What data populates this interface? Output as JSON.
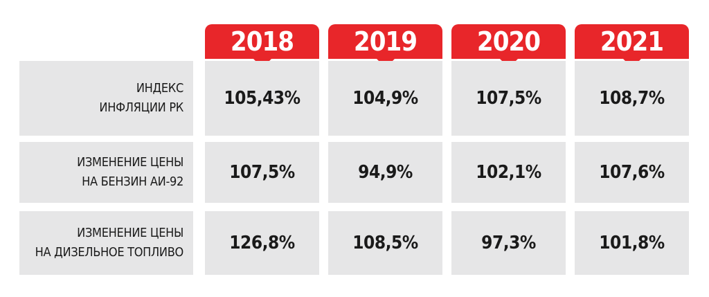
{
  "chart_data": {
    "type": "table",
    "columns": [
      "2018",
      "2019",
      "2020",
      "2021"
    ],
    "rows": [
      {
        "label_lines": [
          "ИНДЕКС",
          "ИНФЛЯЦИИ РК"
        ],
        "values": [
          "105,43%",
          "104,9%",
          "107,5%",
          "108,7%"
        ]
      },
      {
        "label_lines": [
          "ИЗМЕНЕНИЕ ЦЕНЫ",
          "НА БЕНЗИН АИ-92"
        ],
        "values": [
          "107,5%",
          "94,9%",
          "102,1%",
          "107,6%"
        ]
      },
      {
        "label_lines": [
          "ИЗМЕНЕНИЕ ЦЕНЫ",
          "НА ДИЗЕЛЬНОЕ ТОПЛИВО"
        ],
        "values": [
          "126,8%",
          "108,5%",
          "97,3%",
          "101,8%"
        ]
      }
    ]
  },
  "colors": {
    "header": "#e8262a",
    "cell_background": "#e6e6e7",
    "text": "#1a1a1a",
    "header_text": "#ffffff"
  }
}
